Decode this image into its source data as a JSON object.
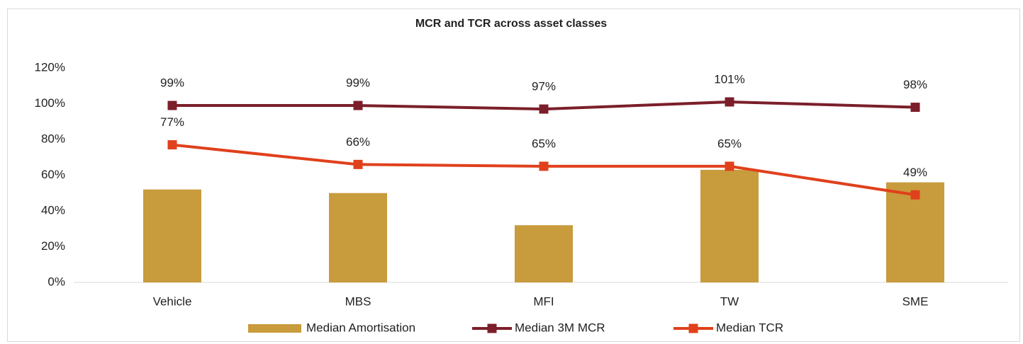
{
  "chart_data": {
    "type": "combo",
    "title": "MCR and TCR across asset classes",
    "categories": [
      "Vehicle",
      "MBS",
      "MFI",
      "TW",
      "SME"
    ],
    "series": [
      {
        "name": "Median Amortisation",
        "type": "bar",
        "color": "#c89b3c",
        "values": [
          52,
          50,
          32,
          63,
          56
        ]
      },
      {
        "name": "Median 3M MCR",
        "type": "line",
        "color": "#7b1f2a",
        "values": [
          99,
          99,
          97,
          101,
          98
        ],
        "value_labels": [
          "99%",
          "99%",
          "97%",
          "101%",
          "98%"
        ]
      },
      {
        "name": "Median TCR",
        "type": "line",
        "color": "#e0401c",
        "values": [
          77,
          66,
          65,
          65,
          49
        ],
        "value_labels": [
          "77%",
          "66%",
          "65%",
          "65%",
          "49%"
        ]
      }
    ],
    "ylim": [
      0,
      120
    ],
    "yticks": [
      {
        "value": 0,
        "label": "0%"
      },
      {
        "value": 20,
        "label": "20%"
      },
      {
        "value": 40,
        "label": "40%"
      },
      {
        "value": 60,
        "label": "60%"
      },
      {
        "value": 80,
        "label": "80%"
      },
      {
        "value": 100,
        "label": "100%"
      },
      {
        "value": 120,
        "label": "120%"
      }
    ],
    "grid": false,
    "legend": "bottom"
  }
}
